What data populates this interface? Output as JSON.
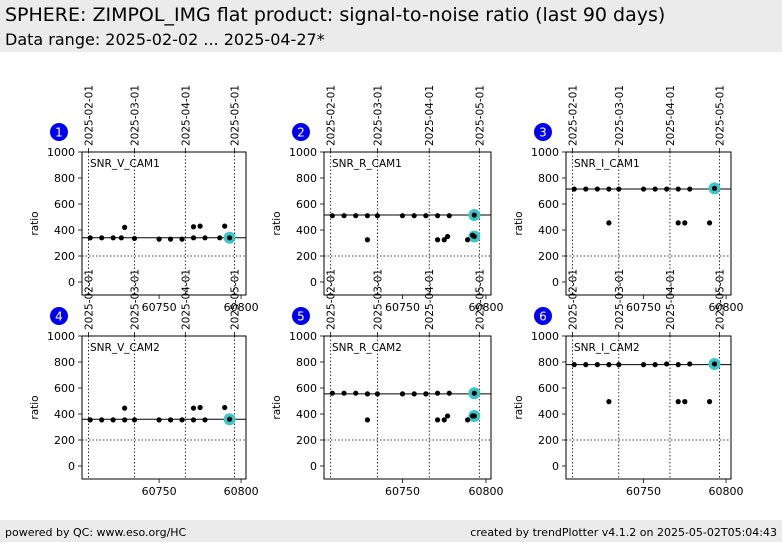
{
  "header": {
    "title": "SPHERE: ZIMPOL_IMG flat product: signal-to-noise ratio (last 90 days)",
    "subtitle": "Data range: 2025-02-02 ... 2025-04-27*"
  },
  "footer": {
    "left": "powered by QC: www.eso.org/HC",
    "right": "created by trendPlotter v4.1.2 on 2025-05-02T05:04:43"
  },
  "colors": {
    "badge": "#0000ee",
    "badge_text": "#ffffff",
    "point": "#000000",
    "highlight": "#3cc6c6",
    "header_bg": "#ebebeb"
  },
  "chart_data": [
    {
      "type": "scatter",
      "panel": "1",
      "label": "SNR_V_CAM1",
      "ylabel": "ratio",
      "xlim": [
        60703,
        60803
      ],
      "ylim": [
        -100,
        1000
      ],
      "yticks": [
        0,
        200,
        400,
        600,
        800,
        1000
      ],
      "xticks": [
        60750,
        60800
      ],
      "date_ticks": [
        {
          "mjd": 60707,
          "label": "2025-02-01"
        },
        {
          "mjd": 60735,
          "label": "2025-03-01"
        },
        {
          "mjd": 60766,
          "label": "2025-04-01"
        },
        {
          "mjd": 60796,
          "label": "2025-05-01"
        }
      ],
      "reference_line": 340,
      "threshold_line": 200,
      "x": [
        60708,
        60715,
        60722,
        60727,
        60729,
        60735,
        60750,
        60757,
        60764,
        60771,
        60771,
        60775,
        60778,
        60787,
        60790
      ],
      "y": [
        340,
        340,
        340,
        340,
        420,
        335,
        330,
        330,
        330,
        340,
        425,
        430,
        340,
        340,
        430
      ],
      "highlight": {
        "x": [
          60793
        ],
        "y": [
          340
        ]
      }
    },
    {
      "type": "scatter",
      "panel": "2",
      "label": "SNR_R_CAM1",
      "ylabel": "ratio",
      "xlim": [
        60703,
        60803
      ],
      "ylim": [
        -100,
        1000
      ],
      "yticks": [
        0,
        200,
        400,
        600,
        800,
        1000
      ],
      "xticks": [
        60750,
        60800
      ],
      "date_ticks": [
        {
          "mjd": 60707,
          "label": "2025-02-01"
        },
        {
          "mjd": 60735,
          "label": "2025-03-01"
        },
        {
          "mjd": 60766,
          "label": "2025-04-01"
        },
        {
          "mjd": 60796,
          "label": "2025-05-01"
        }
      ],
      "reference_line": 515,
      "threshold_line": 200,
      "x": [
        60708,
        60715,
        60722,
        60729,
        60729,
        60735,
        60750,
        60757,
        60764,
        60771,
        60771,
        60775,
        60777,
        60778,
        60789,
        60792
      ],
      "y": [
        510,
        510,
        510,
        510,
        325,
        510,
        510,
        510,
        510,
        510,
        325,
        325,
        350,
        510,
        325,
        360
      ],
      "highlight": {
        "x": [
          60793,
          60793
        ],
        "y": [
          515,
          350
        ]
      }
    },
    {
      "type": "scatter",
      "panel": "3",
      "label": "SNR_I_CAM1",
      "ylabel": "ratio",
      "xlim": [
        60703,
        60803
      ],
      "ylim": [
        -100,
        1000
      ],
      "yticks": [
        0,
        200,
        400,
        600,
        800,
        1000
      ],
      "xticks": [
        60750,
        60800
      ],
      "date_ticks": [
        {
          "mjd": 60707,
          "label": "2025-02-01"
        },
        {
          "mjd": 60735,
          "label": "2025-03-01"
        },
        {
          "mjd": 60766,
          "label": "2025-04-01"
        },
        {
          "mjd": 60796,
          "label": "2025-05-01"
        }
      ],
      "reference_line": 715,
      "threshold_line": 200,
      "x": [
        60708,
        60715,
        60722,
        60729,
        60729,
        60735,
        60750,
        60757,
        60764,
        60771,
        60771,
        60775,
        60778,
        60790
      ],
      "y": [
        715,
        715,
        715,
        715,
        455,
        715,
        715,
        715,
        715,
        715,
        455,
        455,
        715,
        455
      ],
      "highlight": {
        "x": [
          60793
        ],
        "y": [
          720
        ]
      }
    },
    {
      "type": "scatter",
      "panel": "4",
      "label": "SNR_V_CAM2",
      "ylabel": "ratio",
      "xlim": [
        60703,
        60803
      ],
      "ylim": [
        -100,
        1000
      ],
      "yticks": [
        0,
        200,
        400,
        600,
        800,
        1000
      ],
      "xticks": [
        60750,
        60800
      ],
      "date_ticks": [
        {
          "mjd": 60707,
          "label": "2025-02-01"
        },
        {
          "mjd": 60735,
          "label": "2025-03-01"
        },
        {
          "mjd": 60766,
          "label": "2025-04-01"
        },
        {
          "mjd": 60796,
          "label": "2025-05-01"
        }
      ],
      "reference_line": 360,
      "threshold_line": 200,
      "x": [
        60708,
        60715,
        60722,
        60729,
        60729,
        60735,
        60750,
        60757,
        60764,
        60771,
        60771,
        60775,
        60778,
        60790
      ],
      "y": [
        355,
        355,
        355,
        355,
        445,
        355,
        355,
        355,
        355,
        355,
        445,
        450,
        355,
        450
      ],
      "highlight": {
        "x": [
          60793
        ],
        "y": [
          360
        ]
      }
    },
    {
      "type": "scatter",
      "panel": "5",
      "label": "SNR_R_CAM2",
      "ylabel": "ratio",
      "xlim": [
        60703,
        60803
      ],
      "ylim": [
        -100,
        1000
      ],
      "yticks": [
        0,
        200,
        400,
        600,
        800,
        1000
      ],
      "xticks": [
        60750,
        60800
      ],
      "date_ticks": [
        {
          "mjd": 60707,
          "label": "2025-02-01"
        },
        {
          "mjd": 60735,
          "label": "2025-03-01"
        },
        {
          "mjd": 60766,
          "label": "2025-04-01"
        },
        {
          "mjd": 60796,
          "label": "2025-05-01"
        }
      ],
      "reference_line": 555,
      "threshold_line": 200,
      "x": [
        60708,
        60715,
        60722,
        60729,
        60729,
        60735,
        60750,
        60757,
        60764,
        60771,
        60771,
        60775,
        60777,
        60778,
        60789,
        60792
      ],
      "y": [
        560,
        560,
        560,
        555,
        355,
        555,
        555,
        555,
        555,
        560,
        355,
        355,
        385,
        560,
        355,
        385
      ],
      "highlight": {
        "x": [
          60793,
          60793
        ],
        "y": [
          560,
          385
        ]
      }
    },
    {
      "type": "scatter",
      "panel": "6",
      "label": "SNR_I_CAM2",
      "ylabel": "ratio",
      "xlim": [
        60703,
        60803
      ],
      "ylim": [
        -100,
        1000
      ],
      "yticks": [
        0,
        200,
        400,
        600,
        800,
        1000
      ],
      "xticks": [
        60750,
        60800
      ],
      "date_ticks": [
        {
          "mjd": 60707,
          "label": "2025-02-01"
        },
        {
          "mjd": 60735,
          "label": "2025-03-01"
        },
        {
          "mjd": 60766,
          "label": "2025-04-01"
        },
        {
          "mjd": 60796,
          "label": "2025-05-01"
        }
      ],
      "reference_line": 780,
      "threshold_line": 200,
      "x": [
        60708,
        60715,
        60722,
        60729,
        60729,
        60735,
        60750,
        60757,
        60764,
        60771,
        60771,
        60775,
        60778,
        60790
      ],
      "y": [
        780,
        780,
        780,
        780,
        495,
        780,
        780,
        780,
        785,
        780,
        495,
        495,
        785,
        495
      ],
      "highlight": {
        "x": [
          60793
        ],
        "y": [
          785
        ]
      }
    }
  ]
}
